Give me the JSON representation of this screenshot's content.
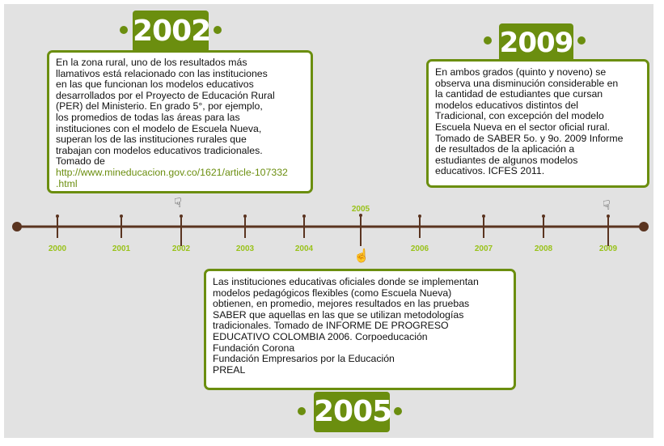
{
  "timeline": {
    "years": [
      "2000",
      "2001",
      "2002",
      "2003",
      "2004",
      "2005",
      "2006",
      "2007",
      "2008",
      "2009"
    ],
    "marked_years": [
      "2002",
      "2005",
      "2009"
    ]
  },
  "events": {
    "y2002": {
      "year": "2002",
      "lines": [
        "En la zona rural, uno de los resultados más",
        "llamativos está relacionado con las instituciones",
        "en las que funcionan los modelos educativos",
        "desarrollados por el Proyecto de Educación Rural",
        "(PER) del Ministerio. En grado 5°, por ejemplo,",
        "los promedios de todas las áreas para las",
        "instituciones con el modelo de Escuela Nueva,",
        "superan los de las instituciones rurales que",
        "trabajan con modelos educativos tradicionales.",
        "Tomado de"
      ],
      "link_lines": [
        "http://www.mineducacion.gov.co/1621/article-107332",
        ".html"
      ]
    },
    "y2009": {
      "year": "2009",
      "lines": [
        "En ambos grados (quinto y noveno) se",
        "observa una disminución considerable en",
        "la cantidad de estudiantes que cursan",
        "modelos educativos distintos del",
        "Tradicional, con excepción del modelo",
        "Escuela Nueva en el sector oficial rural.",
        "Tomado de SABER 5o. y 9o. 2009 Informe",
        "de resultados de la aplicación a",
        "estudiantes de algunos modelos",
        "educativos. ICFES 2011."
      ]
    },
    "y2005": {
      "year": "2005",
      "lines": [
        "Las instituciones educativas oficiales donde se implementan",
        "modelos pedagógicos flexibles (como Escuela Nueva)",
        "obtienen, en promedio, mejores resultados en las pruebas",
        "SABER que aquellas en las que se utilizan metodologías",
        "tradicionales. Tomado de INFORME DE PROGRESO",
        "EDUCATIVO COLOMBIA 2006. Corpoeducación",
        "Fundación Corona",
        "Fundación Empresarios por la Educación",
        "PREAL"
      ]
    }
  },
  "colors": {
    "accent_green": "#6b8e0f",
    "label_green": "#99c21a",
    "timeline_brown": "#5a3420",
    "background": "#e2e2e2"
  }
}
